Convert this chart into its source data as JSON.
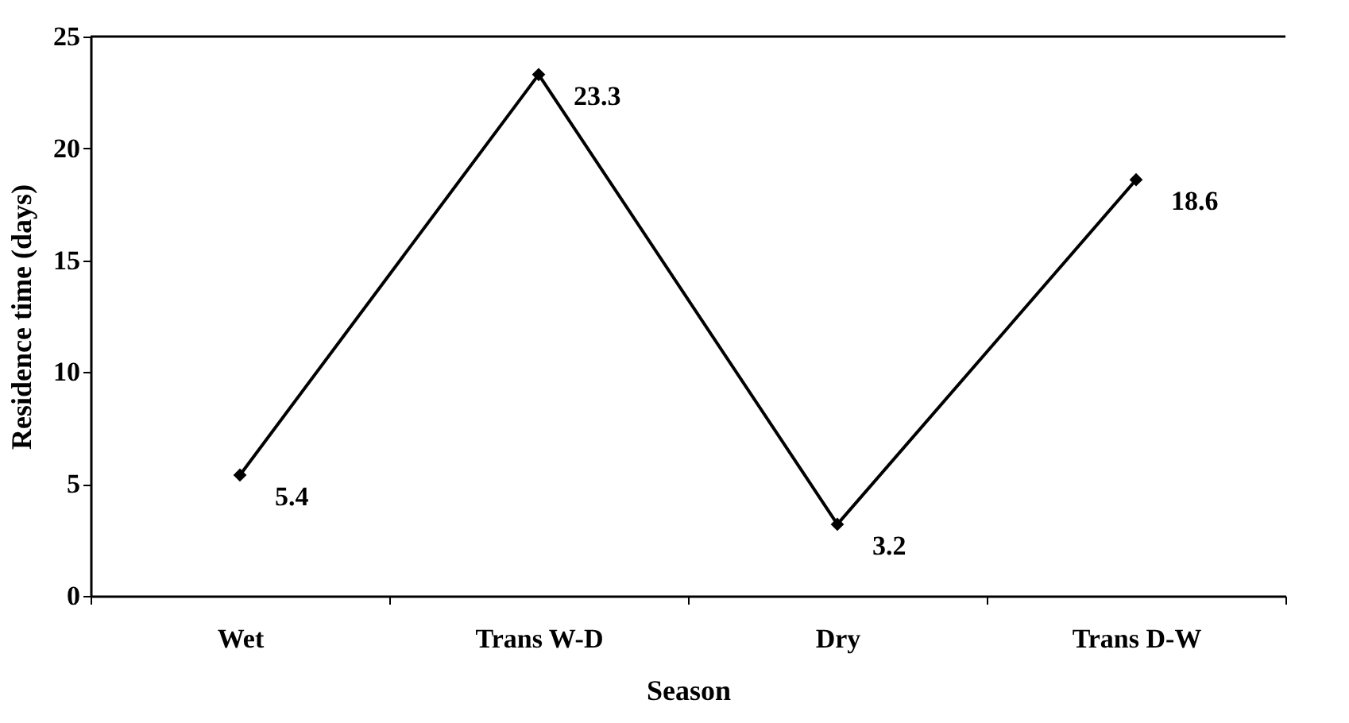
{
  "chart_data": {
    "type": "line",
    "xlabel": "Season",
    "ylabel": "Residence time (days)",
    "categories": [
      "Wet",
      "Trans W-D",
      "Dry",
      "Trans D-W"
    ],
    "series": [
      {
        "color": "#000000",
        "values": [
          5.4,
          23.3,
          3.2,
          18.6
        ]
      }
    ],
    "ylim": [
      0,
      25
    ],
    "yticks": [
      0,
      5,
      10,
      15,
      20,
      25
    ],
    "grid": false,
    "marker": "diamond",
    "line_style": "solid",
    "data_labels": true
  }
}
